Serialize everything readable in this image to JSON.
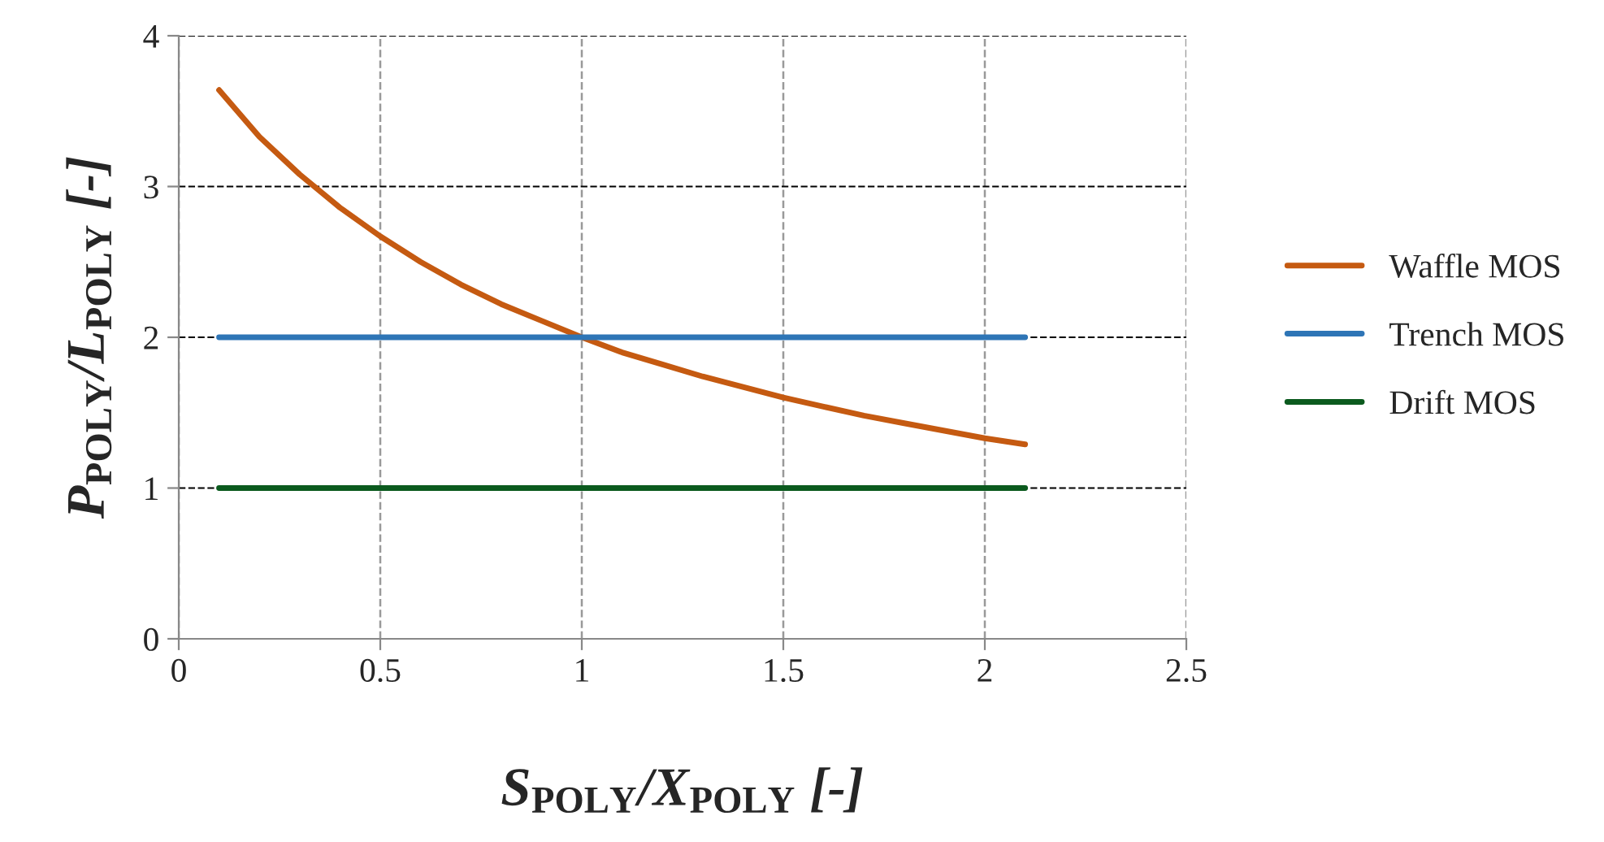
{
  "chart_data": {
    "type": "line",
    "xlabel": "S$_{POLY}$/X$_{POLY}$ [-]",
    "ylabel": "P$_{POLY}$/L$_{POLY}$ [-]",
    "xlim": [
      0,
      2.5
    ],
    "ylim": [
      0,
      4
    ],
    "xticks": [
      0,
      0.5,
      1,
      1.5,
      2,
      2.5
    ],
    "yticks": [
      0,
      1,
      2,
      3,
      4
    ],
    "grid": true,
    "legend": "right",
    "marker": "none",
    "line_style": "solid",
    "series": [
      {
        "name": "Waffle MOS",
        "color": "#c55a11",
        "x": [
          0.1,
          0.2,
          0.3,
          0.4,
          0.5,
          0.6,
          0.7,
          0.8,
          0.9,
          1.0,
          1.1,
          1.2,
          1.3,
          1.4,
          1.5,
          1.6,
          1.7,
          1.8,
          1.9,
          2.0,
          2.1
        ],
        "values": [
          3.64,
          3.33,
          3.08,
          2.86,
          2.67,
          2.5,
          2.35,
          2.22,
          2.11,
          2.0,
          1.9,
          1.82,
          1.74,
          1.67,
          1.6,
          1.54,
          1.48,
          1.43,
          1.38,
          1.33,
          1.29
        ]
      },
      {
        "name": "Trench MOS",
        "color": "#2e75b6",
        "x": [
          0.1,
          2.1
        ],
        "values": [
          2,
          2
        ]
      },
      {
        "name": "Drift MOS",
        "color": "#0b5a1e",
        "x": [
          0.1,
          2.1
        ],
        "values": [
          1,
          1
        ]
      }
    ]
  }
}
